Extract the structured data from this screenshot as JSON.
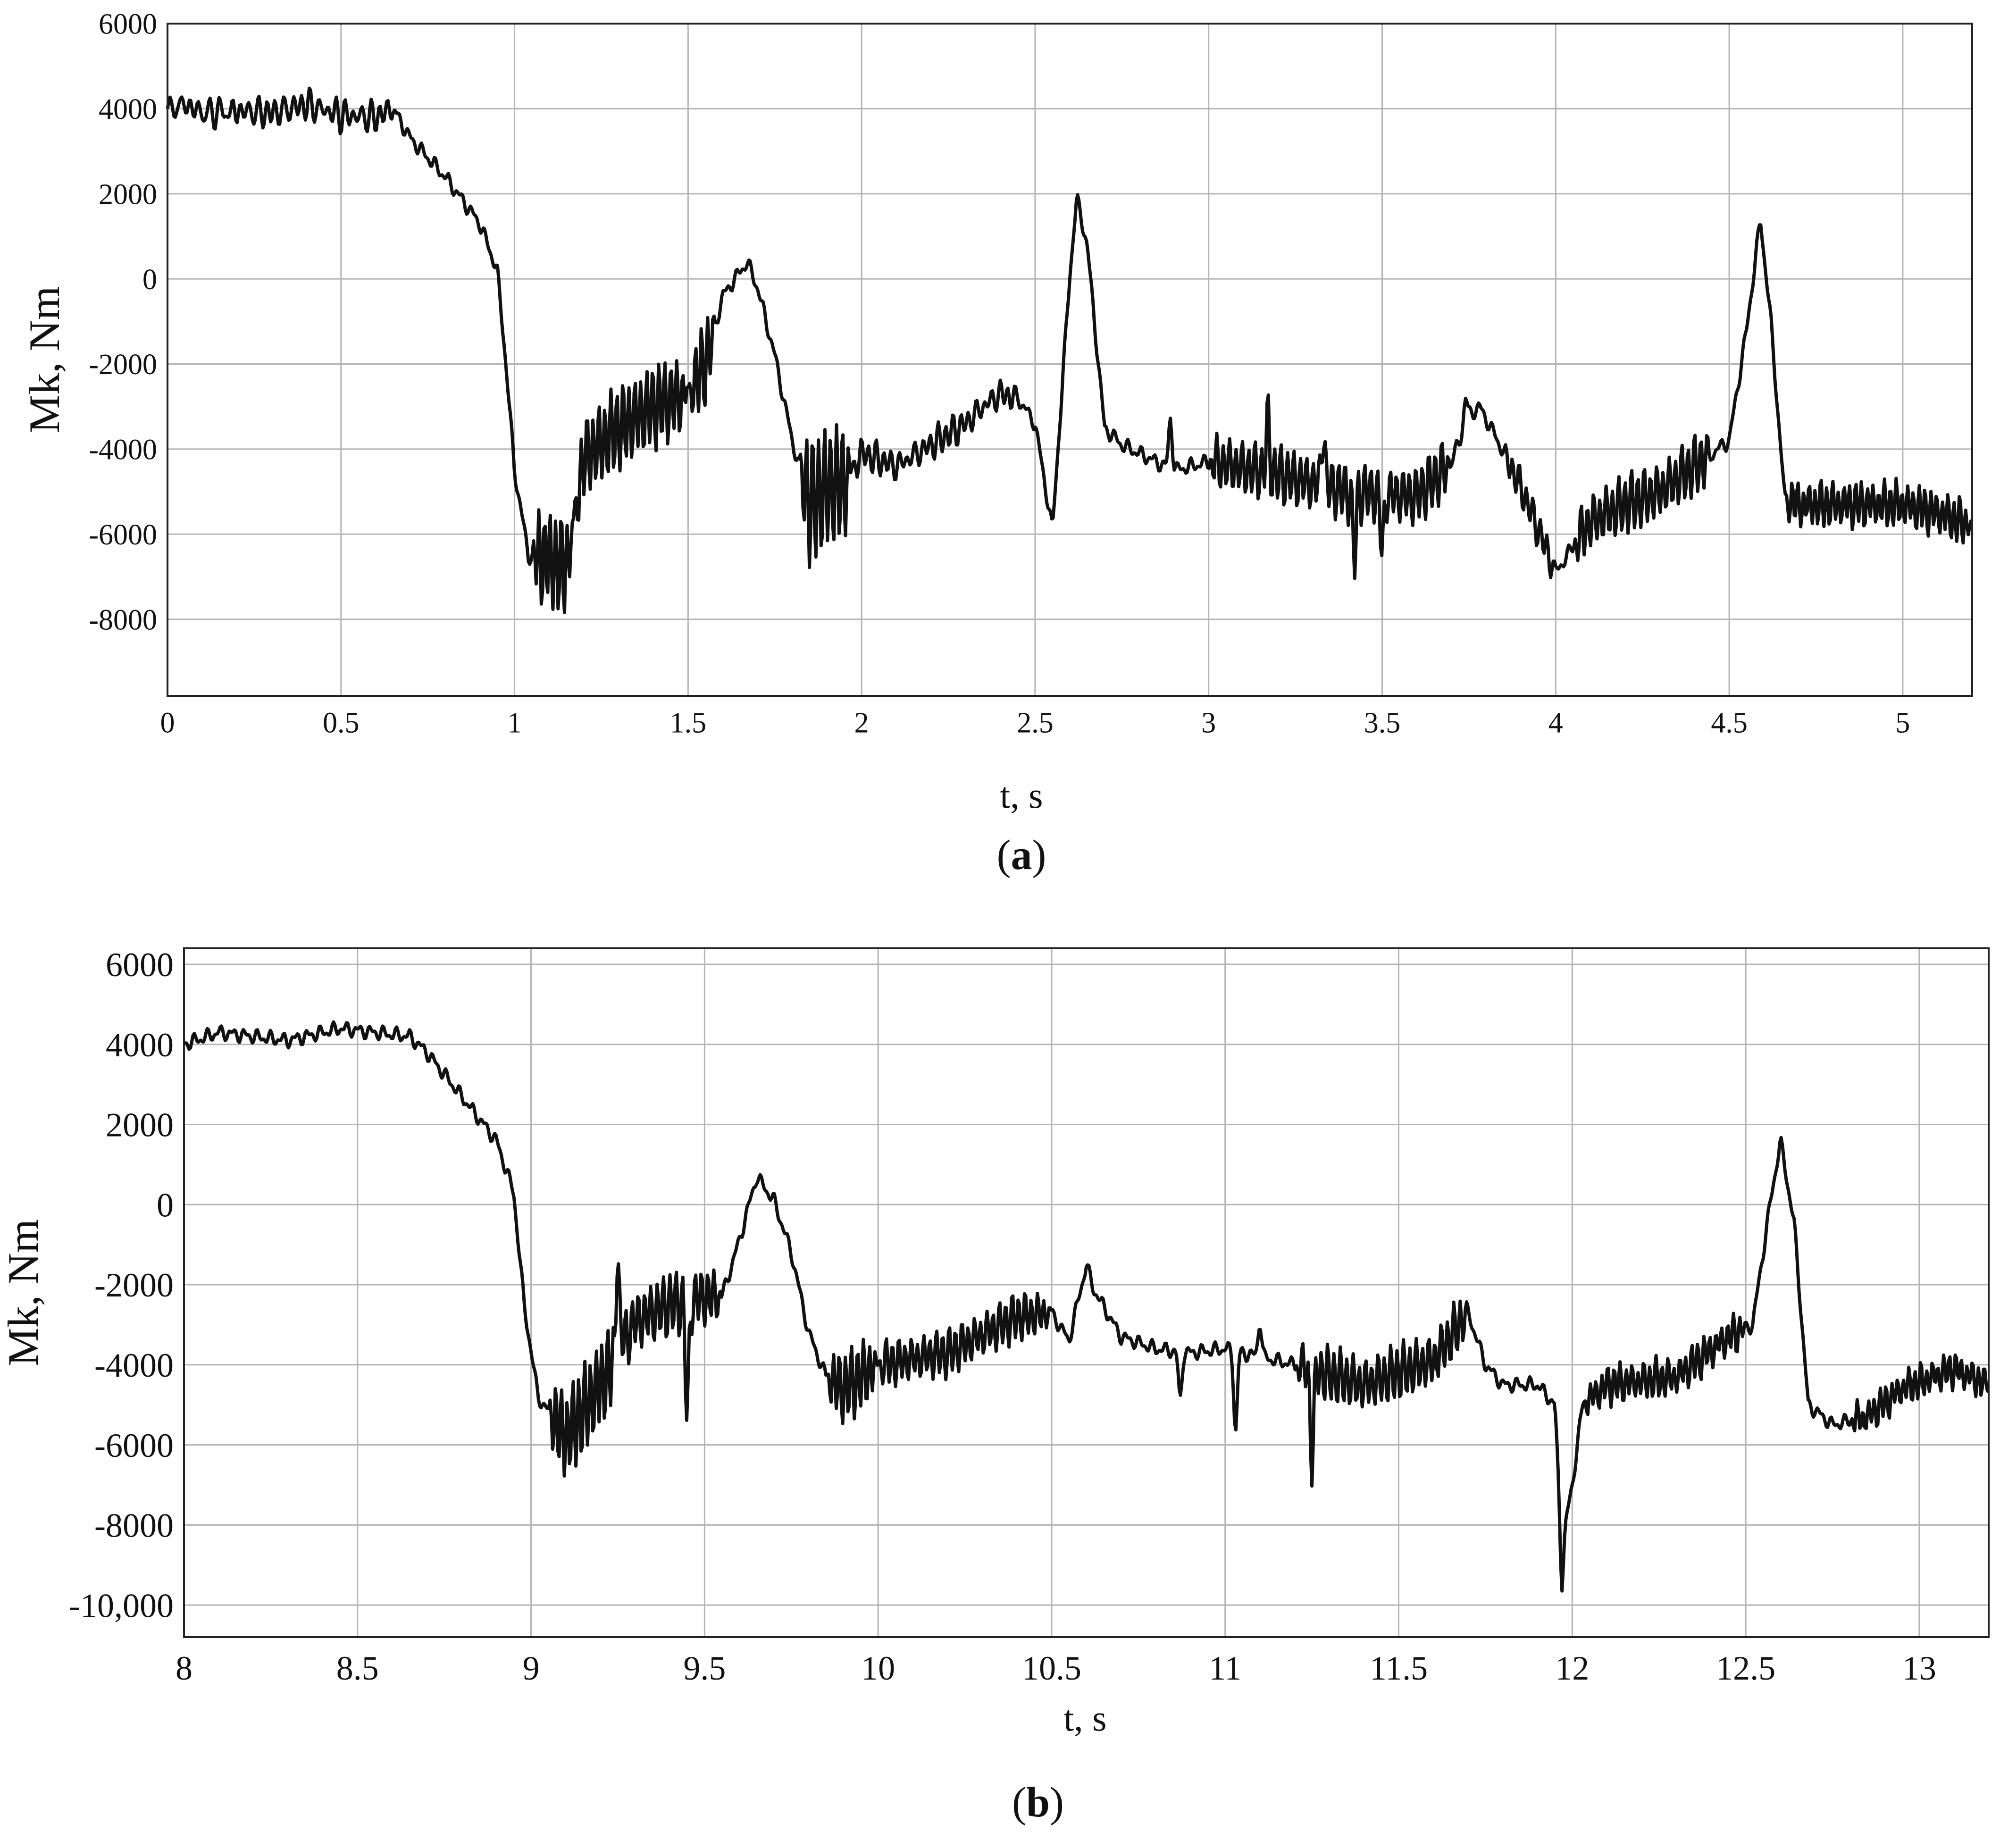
{
  "line_color": "#111111",
  "grid_color": "#b4b4b4",
  "chart_data": [
    {
      "type": "line",
      "caption": {
        "open": "(",
        "letter": "a",
        "close": ")"
      },
      "xlabel": "t, s",
      "ylabel": "Mk, Nm",
      "xlim": [
        0,
        5.2
      ],
      "ylim": [
        -9800,
        6000
      ],
      "grid": true,
      "x_ticks": [
        0,
        0.5,
        1,
        1.5,
        2,
        2.5,
        3,
        3.5,
        4,
        4.5,
        5
      ],
      "x_tick_labels": [
        "0",
        "0.5",
        "1",
        "1.5",
        "2",
        "2.5",
        "3",
        "3.5",
        "4",
        "4.5",
        "5"
      ],
      "y_ticks": [
        6000,
        4000,
        2000,
        0,
        -2000,
        -4000,
        -6000,
        -8000
      ],
      "y_tick_labels": [
        "6000",
        "4000",
        "2000",
        "0",
        "-2000",
        "-4000",
        "-6000",
        "-8000"
      ],
      "series": [
        {
          "anchors": [
            [
              0,
              4000
            ],
            [
              0.05,
              4100
            ],
            [
              0.1,
              3900
            ],
            [
              0.2,
              3950
            ],
            [
              0.3,
              3900
            ],
            [
              0.4,
              4100
            ],
            [
              0.5,
              3850
            ],
            [
              0.6,
              3800
            ],
            [
              0.65,
              4000
            ],
            [
              0.7,
              3300
            ],
            [
              0.8,
              2400
            ],
            [
              0.9,
              1300
            ],
            [
              0.95,
              200
            ],
            [
              0.97,
              -1500
            ],
            [
              1.0,
              -4500
            ],
            [
              1.04,
              -6500
            ],
            [
              1.1,
              -6600
            ],
            [
              1.15,
              -6800
            ],
            [
              1.2,
              -4200
            ],
            [
              1.3,
              -3500
            ],
            [
              1.4,
              -3000
            ],
            [
              1.5,
              -2700
            ],
            [
              1.55,
              -2000
            ],
            [
              1.6,
              -400
            ],
            [
              1.67,
              400
            ],
            [
              1.7,
              -200
            ],
            [
              1.75,
              -1800
            ],
            [
              1.8,
              -3800
            ],
            [
              1.85,
              -5300
            ],
            [
              1.9,
              -4900
            ],
            [
              1.95,
              -4800
            ],
            [
              2.0,
              -4100
            ],
            [
              2.1,
              -4400
            ],
            [
              2.2,
              -3900
            ],
            [
              2.3,
              -3400
            ],
            [
              2.35,
              -3000
            ],
            [
              2.4,
              -2700
            ],
            [
              2.45,
              -2800
            ],
            [
              2.5,
              -3400
            ],
            [
              2.55,
              -5900
            ],
            [
              2.6,
              100
            ],
            [
              2.62,
              1900
            ],
            [
              2.65,
              800
            ],
            [
              2.7,
              -3500
            ],
            [
              2.75,
              -3900
            ],
            [
              2.8,
              -4100
            ],
            [
              2.9,
              -4500
            ],
            [
              3.0,
              -4300
            ],
            [
              3.2,
              -4600
            ],
            [
              3.4,
              -5000
            ],
            [
              3.6,
              -5100
            ],
            [
              3.7,
              -4300
            ],
            [
              3.75,
              -3200
            ],
            [
              3.78,
              -3000
            ],
            [
              3.82,
              -3600
            ],
            [
              3.9,
              -4900
            ],
            [
              4.0,
              -6900
            ],
            [
              4.1,
              -5700
            ],
            [
              4.2,
              -5300
            ],
            [
              4.3,
              -5000
            ],
            [
              4.4,
              -4400
            ],
            [
              4.5,
              -3800
            ],
            [
              4.55,
              -1200
            ],
            [
              4.59,
              1400
            ],
            [
              4.62,
              -1000
            ],
            [
              4.66,
              -5200
            ],
            [
              4.7,
              -5300
            ],
            [
              5.0,
              -5300
            ],
            [
              5.1,
              -5500
            ],
            [
              5.2,
              -5800
            ]
          ],
          "osc": [
            [
              0,
              0.18,
              220,
              35
            ],
            [
              0.18,
              0.66,
              260,
              40
            ],
            [
              1.05,
              1.17,
              1100,
              62
            ],
            [
              1.17,
              1.5,
              900,
              58
            ],
            [
              1.5,
              1.58,
              900,
              58
            ],
            [
              1.82,
              1.97,
              1400,
              58
            ],
            [
              1.97,
              2.45,
              260,
              45
            ],
            [
              3.0,
              3.7,
              600,
              54
            ],
            [
              3.85,
              4.0,
              300,
              50
            ],
            [
              4.05,
              4.45,
              600,
              55
            ],
            [
              4.66,
              5.2,
              450,
              60
            ]
          ],
          "spikes": [
            [
              2.89,
              1200
            ],
            [
              3.17,
              1200
            ],
            [
              3.33,
              1300
            ],
            [
              3.42,
              -1500
            ],
            [
              3.5,
              -1300
            ],
            [
              3.74,
              600
            ]
          ]
        }
      ]
    },
    {
      "type": "line",
      "caption": {
        "open": "(",
        "letter": "b",
        "close": ")"
      },
      "xlabel": "t, s",
      "ylabel": "Mk, Nm",
      "xlim": [
        8,
        13.2
      ],
      "ylim": [
        -10800,
        6400
      ],
      "grid": true,
      "x_ticks": [
        8,
        8.5,
        9,
        9.5,
        10,
        10.5,
        11,
        11.5,
        12,
        12.5,
        13
      ],
      "x_tick_labels": [
        "8",
        "8.5",
        "9",
        "9.5",
        "10",
        "10.5",
        "11",
        "11.5",
        "12",
        "12.5",
        "13"
      ],
      "y_ticks": [
        6000,
        4000,
        2000,
        0,
        -2000,
        -4000,
        -6000,
        -8000,
        -10000
      ],
      "y_tick_labels": [
        "6000",
        "4000",
        "2000",
        "0",
        "-2000",
        "-4000",
        "-6000",
        "-8000",
        "-10,000"
      ],
      "series": [
        {
          "anchors": [
            [
              8.0,
              4000
            ],
            [
              8.1,
              4300
            ],
            [
              8.2,
              4200
            ],
            [
              8.3,
              4100
            ],
            [
              8.45,
              4400
            ],
            [
              8.55,
              4300
            ],
            [
              8.65,
              4200
            ],
            [
              8.7,
              3800
            ],
            [
              8.8,
              2700
            ],
            [
              8.9,
              1600
            ],
            [
              8.95,
              300
            ],
            [
              8.98,
              -2500
            ],
            [
              9.02,
              -4800
            ],
            [
              9.1,
              -5800
            ],
            [
              9.2,
              -4500
            ],
            [
              9.3,
              -2900
            ],
            [
              9.4,
              -2500
            ],
            [
              9.5,
              -2300
            ],
            [
              9.55,
              -2300
            ],
            [
              9.6,
              -900
            ],
            [
              9.65,
              700
            ],
            [
              9.7,
              100
            ],
            [
              9.75,
              -1200
            ],
            [
              9.8,
              -3200
            ],
            [
              9.85,
              -4300
            ],
            [
              9.9,
              -4600
            ],
            [
              10.0,
              -4000
            ],
            [
              10.2,
              -3700
            ],
            [
              10.4,
              -2800
            ],
            [
              10.5,
              -2700
            ],
            [
              10.55,
              -3400
            ],
            [
              10.6,
              -1500
            ],
            [
              10.62,
              -2100
            ],
            [
              10.7,
              -3300
            ],
            [
              10.8,
              -3600
            ],
            [
              10.9,
              -3700
            ],
            [
              11.0,
              -3600
            ],
            [
              11.2,
              -4000
            ],
            [
              11.4,
              -4500
            ],
            [
              11.6,
              -3900
            ],
            [
              11.7,
              -2700
            ],
            [
              11.75,
              -4000
            ],
            [
              11.8,
              -4500
            ],
            [
              11.9,
              -4500
            ],
            [
              11.95,
              -5000
            ],
            [
              11.97,
              -8500
            ],
            [
              12.0,
              -7000
            ],
            [
              12.03,
              -5000
            ],
            [
              12.1,
              -4500
            ],
            [
              12.3,
              -4300
            ],
            [
              12.45,
              -3300
            ],
            [
              12.52,
              -3000
            ],
            [
              12.57,
              0
            ],
            [
              12.6,
              1600
            ],
            [
              12.64,
              -500
            ],
            [
              12.68,
              -5000
            ],
            [
              12.75,
              -5500
            ],
            [
              12.85,
              -5300
            ],
            [
              12.95,
              -4600
            ],
            [
              13.1,
              -4100
            ],
            [
              13.2,
              -4500
            ]
          ],
          "osc": [
            [
              8.0,
              0.65,
              200,
              60
            ],
            [
              9.05,
              9.25,
              1050,
              60
            ],
            [
              9.25,
              9.55,
              700,
              55
            ],
            [
              9.85,
              10.0,
              800,
              58
            ],
            [
              10.0,
              10.5,
              500,
              55
            ],
            [
              11.2,
              11.7,
              600,
              55
            ],
            [
              12.03,
              12.5,
              400,
              58
            ],
            [
              12.8,
              13.2,
              350,
              60
            ]
          ],
          "spikes": [
            [
              9.25,
              2400
            ],
            [
              9.45,
              -2800
            ],
            [
              10.87,
              -1200
            ],
            [
              11.03,
              -2000
            ],
            [
              11.1,
              900
            ],
            [
              11.25,
              -2300
            ],
            [
              11.97,
              -1000
            ]
          ]
        }
      ]
    }
  ]
}
